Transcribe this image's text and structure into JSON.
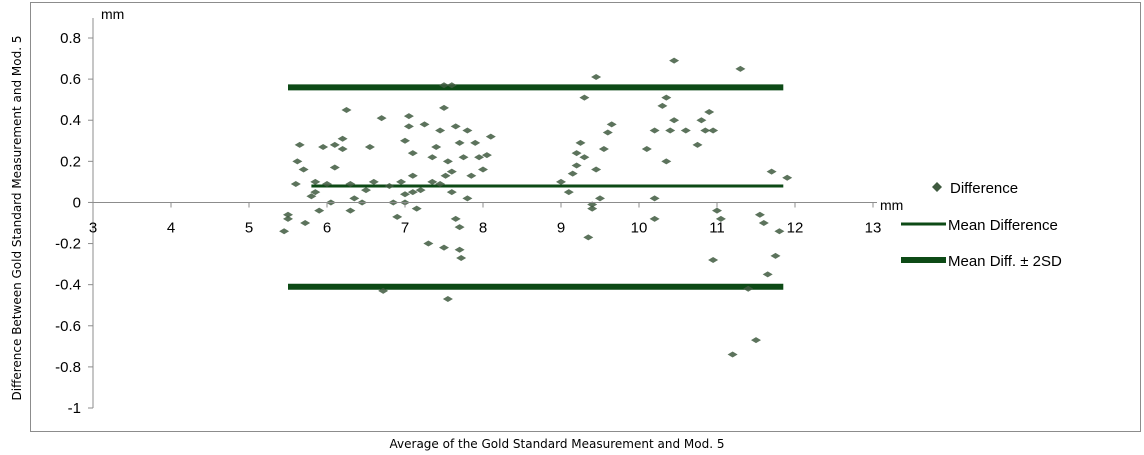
{
  "chart_data": {
    "type": "scatter",
    "title": "",
    "xlabel": "Average of the Gold Standard Measurement and Mod. 5",
    "ylabel": "Difference Between Gold Standard Measurement and  Mod. 5",
    "x_unit": "mm",
    "y_unit": "mm",
    "xlim": [
      3,
      13
    ],
    "ylim": [
      -1,
      0.8
    ],
    "x_ticks": [
      "3",
      "4",
      "5",
      "6",
      "7",
      "8",
      "9",
      "10",
      "11",
      "12",
      "13"
    ],
    "y_ticks": [
      "0.8",
      "0.6",
      "0.4",
      "0.2",
      "0",
      "-0.2",
      "-0.4",
      "-0.6",
      "-0.8",
      "-1"
    ],
    "grid": false,
    "legend_position": "right",
    "colors": {
      "marker": "#3f5a3f",
      "line": "#0d4a16"
    },
    "series": [
      {
        "name": "Difference",
        "kind": "markers",
        "points": [
          [
            5.5,
            -0.06
          ],
          [
            5.5,
            -0.08
          ],
          [
            5.45,
            -0.14
          ],
          [
            5.6,
            0.09
          ],
          [
            5.65,
            0.28
          ],
          [
            5.62,
            0.2
          ],
          [
            5.7,
            0.16
          ],
          [
            5.72,
            -0.1
          ],
          [
            5.8,
            0.03
          ],
          [
            5.85,
            0.05
          ],
          [
            5.85,
            0.1
          ],
          [
            5.9,
            -0.04
          ],
          [
            5.95,
            0.27
          ],
          [
            6.0,
            0.09
          ],
          [
            6.05,
            0.0
          ],
          [
            6.1,
            0.17
          ],
          [
            6.1,
            0.28
          ],
          [
            6.2,
            0.31
          ],
          [
            6.2,
            0.26
          ],
          [
            6.25,
            0.45
          ],
          [
            6.3,
            -0.04
          ],
          [
            6.3,
            0.09
          ],
          [
            6.35,
            0.02
          ],
          [
            6.45,
            0.0
          ],
          [
            6.5,
            0.06
          ],
          [
            6.55,
            0.27
          ],
          [
            6.6,
            0.1
          ],
          [
            6.7,
            0.41
          ],
          [
            6.72,
            -0.43
          ],
          [
            6.8,
            0.08
          ],
          [
            6.85,
            0.0
          ],
          [
            6.9,
            -0.07
          ],
          [
            6.95,
            0.1
          ],
          [
            7.0,
            0.3
          ],
          [
            7.05,
            0.37
          ],
          [
            7.05,
            0.42
          ],
          [
            7.1,
            0.24
          ],
          [
            7.1,
            0.05
          ],
          [
            7.0,
            0.0
          ],
          [
            7.0,
            0.04
          ],
          [
            7.1,
            0.13
          ],
          [
            7.15,
            -0.03
          ],
          [
            7.2,
            0.06
          ],
          [
            7.25,
            0.38
          ],
          [
            7.3,
            -0.2
          ],
          [
            7.35,
            0.1
          ],
          [
            7.35,
            0.22
          ],
          [
            7.4,
            0.27
          ],
          [
            7.45,
            0.35
          ],
          [
            7.45,
            0.09
          ],
          [
            7.5,
            0.46
          ],
          [
            7.5,
            -0.22
          ],
          [
            7.52,
            0.13
          ],
          [
            7.55,
            0.2
          ],
          [
            7.55,
            -0.47
          ],
          [
            7.6,
            0.05
          ],
          [
            7.6,
            0.15
          ],
          [
            7.65,
            0.37
          ],
          [
            7.65,
            -0.08
          ],
          [
            7.7,
            0.29
          ],
          [
            7.7,
            -0.12
          ],
          [
            7.7,
            -0.23
          ],
          [
            7.72,
            -0.27
          ],
          [
            7.75,
            0.22
          ],
          [
            7.8,
            0.02
          ],
          [
            7.8,
            0.35
          ],
          [
            7.85,
            0.13
          ],
          [
            7.9,
            0.29
          ],
          [
            7.95,
            0.22
          ],
          [
            8.0,
            0.16
          ],
          [
            8.05,
            0.23
          ],
          [
            8.1,
            0.32
          ],
          [
            7.5,
            0.57
          ],
          [
            7.6,
            0.57
          ],
          [
            9.0,
            0.1
          ],
          [
            9.1,
            0.05
          ],
          [
            9.15,
            0.14
          ],
          [
            9.2,
            0.18
          ],
          [
            9.2,
            0.24
          ],
          [
            9.25,
            0.29
          ],
          [
            9.3,
            0.51
          ],
          [
            9.3,
            0.22
          ],
          [
            9.35,
            -0.17
          ],
          [
            9.4,
            -0.01
          ],
          [
            9.4,
            -0.03
          ],
          [
            9.45,
            0.16
          ],
          [
            9.45,
            0.61
          ],
          [
            9.5,
            0.02
          ],
          [
            9.55,
            0.26
          ],
          [
            9.6,
            0.34
          ],
          [
            9.65,
            0.38
          ],
          [
            10.1,
            0.26
          ],
          [
            10.2,
            0.35
          ],
          [
            10.2,
            0.02
          ],
          [
            10.2,
            -0.08
          ],
          [
            10.3,
            0.47
          ],
          [
            10.35,
            0.51
          ],
          [
            10.35,
            0.2
          ],
          [
            10.4,
            0.35
          ],
          [
            10.45,
            0.4
          ],
          [
            10.45,
            0.69
          ],
          [
            10.6,
            0.35
          ],
          [
            10.75,
            0.28
          ],
          [
            10.8,
            0.4
          ],
          [
            10.85,
            0.35
          ],
          [
            10.9,
            0.44
          ],
          [
            10.95,
            0.35
          ],
          [
            10.95,
            -0.28
          ],
          [
            11.0,
            -0.04
          ],
          [
            11.05,
            -0.08
          ],
          [
            11.2,
            -0.74
          ],
          [
            11.3,
            0.65
          ],
          [
            11.4,
            -0.42
          ],
          [
            11.5,
            -0.67
          ],
          [
            11.55,
            -0.06
          ],
          [
            11.6,
            -0.1
          ],
          [
            11.65,
            -0.35
          ],
          [
            11.7,
            0.15
          ],
          [
            11.75,
            -0.26
          ],
          [
            11.8,
            -0.14
          ],
          [
            11.9,
            0.12
          ]
        ]
      },
      {
        "name": "Mean Difference",
        "kind": "hline",
        "y": 0.08,
        "x_range": [
          5.8,
          11.85
        ]
      },
      {
        "name": "Mean Diff. ± 2SD",
        "kind": "hlines",
        "y": [
          0.56,
          -0.41
        ],
        "x_range": [
          5.5,
          11.85
        ]
      }
    ]
  }
}
